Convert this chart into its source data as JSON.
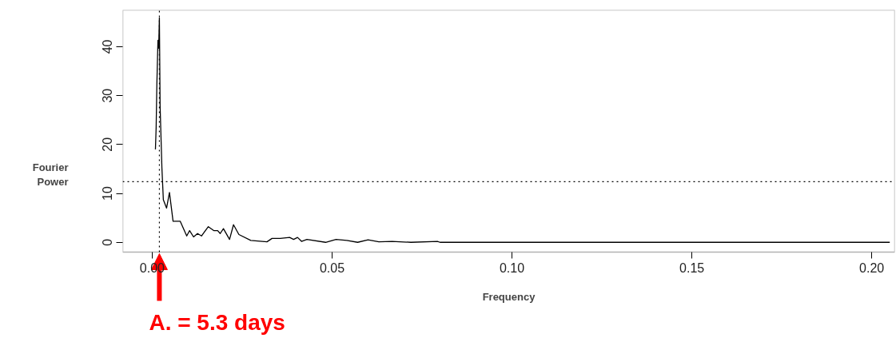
{
  "chart_data": {
    "type": "line",
    "xlabel": "Frequency",
    "ylabel": "Fourier Power",
    "x": [
      0.0009,
      0.0011,
      0.0013,
      0.0016,
      0.0018,
      0.002,
      0.0022,
      0.0027,
      0.0031,
      0.004,
      0.0048,
      0.0058,
      0.0078,
      0.0096,
      0.0104,
      0.0115,
      0.0126,
      0.0137,
      0.0156,
      0.0171,
      0.0182,
      0.0189,
      0.0198,
      0.0215,
      0.0226,
      0.0241,
      0.0274,
      0.0319,
      0.0333,
      0.0356,
      0.0382,
      0.0393,
      0.0404,
      0.0415,
      0.043,
      0.0482,
      0.0511,
      0.0541,
      0.0571,
      0.06,
      0.063,
      0.0667,
      0.0719,
      0.0793,
      0.08,
      0.205
    ],
    "series": [
      {
        "color": "#000000",
        "values": [
          19.0,
          23.5,
          32.3,
          41.3,
          39.7,
          45.9,
          27.8,
          15.2,
          8.7,
          7.0,
          10.2,
          4.3,
          4.3,
          1.3,
          2.4,
          1.1,
          1.8,
          1.3,
          3.2,
          2.4,
          2.4,
          1.8,
          2.8,
          0.6,
          3.6,
          1.6,
          0.4,
          0.1,
          0.8,
          0.8,
          1.0,
          0.6,
          1.0,
          0.2,
          0.6,
          0.0,
          0.6,
          0.4,
          0.0,
          0.5,
          0.1,
          0.2,
          0.0,
          0.2,
          0.0,
          0.0
        ]
      }
    ],
    "xlim": [
      -0.0082,
      0.2064
    ],
    "ylim": [
      -2.0,
      47.5
    ],
    "xticks": [
      {
        "value": 0,
        "label": "0.00"
      },
      0.05,
      {
        "value": 0.1,
        "label": "0.10"
      },
      0.15,
      {
        "value": 0.2,
        "label": "0.20"
      }
    ],
    "yticks": [
      0,
      10,
      20,
      30,
      40
    ],
    "ref_lines": [
      {
        "axis": "x",
        "value": 0.002,
        "color": "#000000",
        "line_style": "dotted"
      },
      {
        "axis": "y",
        "value": 12.4,
        "color": "#000000",
        "line_style": "dotted"
      }
    ],
    "annotations": [
      "A. = 5.3 days"
    ],
    "grid": false,
    "marker": "none",
    "line_style": "solid"
  }
}
